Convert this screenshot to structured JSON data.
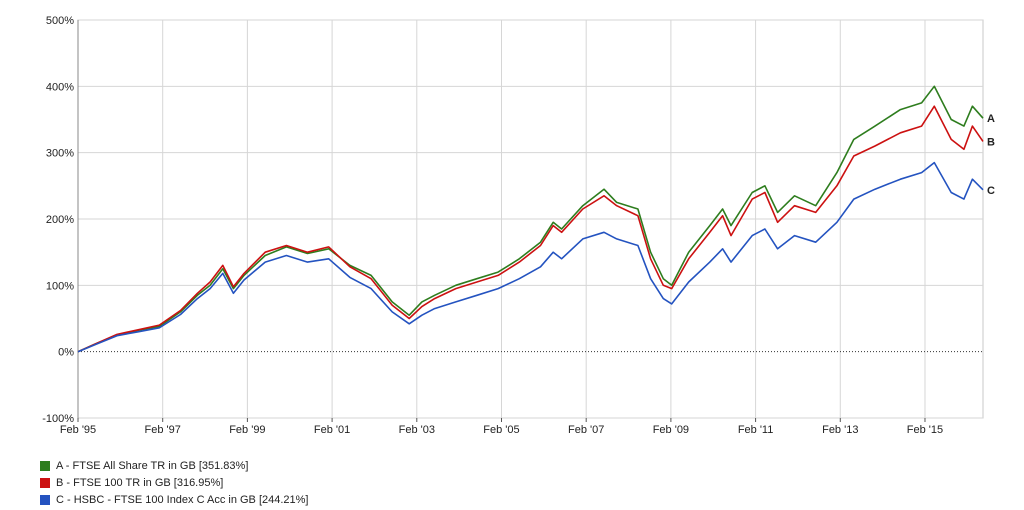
{
  "chart_data": {
    "type": "line",
    "title": "",
    "xlabel": "",
    "ylabel": "",
    "ylim": [
      -100,
      500
    ],
    "xlim": [
      1995.08,
      2016.45
    ],
    "y_ticks": [
      -100,
      0,
      100,
      200,
      300,
      400,
      500
    ],
    "y_tick_labels": [
      "-100%",
      "0%",
      "100%",
      "200%",
      "300%",
      "400%",
      "500%"
    ],
    "x_ticks": [
      1995.08,
      1997.08,
      1999.08,
      2001.08,
      2003.08,
      2005.08,
      2007.08,
      2009.08,
      2011.08,
      2013.08,
      2015.08
    ],
    "x_tick_labels": [
      "Feb '95",
      "Feb '97",
      "Feb '99",
      "Feb '01",
      "Feb '03",
      "Feb '05",
      "Feb '07",
      "Feb '09",
      "Feb '11",
      "Feb '13",
      "Feb '15"
    ],
    "grid": true,
    "legend_position": "bottom-left",
    "series": [
      {
        "name": "A - FTSE All Share TR in GB [351.83%]",
        "end_label": "A",
        "color": "#2e7d1e",
        "points": [
          [
            1995.08,
            0
          ],
          [
            1995.5,
            12
          ],
          [
            1996.0,
            25
          ],
          [
            1996.5,
            32
          ],
          [
            1997.0,
            38
          ],
          [
            1997.5,
            60
          ],
          [
            1997.9,
            85
          ],
          [
            1998.2,
            100
          ],
          [
            1998.5,
            125
          ],
          [
            1998.75,
            95
          ],
          [
            1999.0,
            115
          ],
          [
            1999.5,
            145
          ],
          [
            2000.0,
            158
          ],
          [
            2000.5,
            148
          ],
          [
            2001.0,
            155
          ],
          [
            2001.5,
            130
          ],
          [
            2002.0,
            115
          ],
          [
            2002.5,
            75
          ],
          [
            2002.9,
            55
          ],
          [
            2003.2,
            75
          ],
          [
            2003.5,
            85
          ],
          [
            2004.0,
            100
          ],
          [
            2004.5,
            110
          ],
          [
            2005.0,
            120
          ],
          [
            2005.5,
            140
          ],
          [
            2006.0,
            165
          ],
          [
            2006.3,
            195
          ],
          [
            2006.5,
            185
          ],
          [
            2007.0,
            220
          ],
          [
            2007.5,
            245
          ],
          [
            2007.8,
            225
          ],
          [
            2008.3,
            215
          ],
          [
            2008.6,
            150
          ],
          [
            2008.9,
            110
          ],
          [
            2009.1,
            100
          ],
          [
            2009.5,
            150
          ],
          [
            2010.0,
            190
          ],
          [
            2010.3,
            215
          ],
          [
            2010.5,
            190
          ],
          [
            2011.0,
            240
          ],
          [
            2011.3,
            250
          ],
          [
            2011.6,
            210
          ],
          [
            2012.0,
            235
          ],
          [
            2012.5,
            220
          ],
          [
            2013.0,
            270
          ],
          [
            2013.4,
            320
          ],
          [
            2013.9,
            340
          ],
          [
            2014.5,
            365
          ],
          [
            2015.0,
            375
          ],
          [
            2015.3,
            400
          ],
          [
            2015.7,
            350
          ],
          [
            2016.0,
            340
          ],
          [
            2016.2,
            370
          ],
          [
            2016.45,
            352
          ]
        ]
      },
      {
        "name": "B - FTSE 100 TR in GB [316.95%]",
        "end_label": "B",
        "color": "#cc1111",
        "points": [
          [
            1995.08,
            0
          ],
          [
            1995.5,
            12
          ],
          [
            1996.0,
            26
          ],
          [
            1996.5,
            33
          ],
          [
            1997.0,
            40
          ],
          [
            1997.5,
            62
          ],
          [
            1997.9,
            88
          ],
          [
            1998.2,
            105
          ],
          [
            1998.5,
            130
          ],
          [
            1998.75,
            98
          ],
          [
            1999.0,
            118
          ],
          [
            1999.5,
            150
          ],
          [
            2000.0,
            160
          ],
          [
            2000.5,
            150
          ],
          [
            2001.0,
            158
          ],
          [
            2001.5,
            128
          ],
          [
            2002.0,
            110
          ],
          [
            2002.5,
            70
          ],
          [
            2002.9,
            50
          ],
          [
            2003.2,
            68
          ],
          [
            2003.5,
            80
          ],
          [
            2004.0,
            95
          ],
          [
            2004.5,
            105
          ],
          [
            2005.0,
            115
          ],
          [
            2005.5,
            135
          ],
          [
            2006.0,
            160
          ],
          [
            2006.3,
            190
          ],
          [
            2006.5,
            180
          ],
          [
            2007.0,
            215
          ],
          [
            2007.5,
            235
          ],
          [
            2007.8,
            220
          ],
          [
            2008.3,
            205
          ],
          [
            2008.6,
            140
          ],
          [
            2008.9,
            100
          ],
          [
            2009.1,
            95
          ],
          [
            2009.5,
            140
          ],
          [
            2010.0,
            180
          ],
          [
            2010.3,
            205
          ],
          [
            2010.5,
            175
          ],
          [
            2011.0,
            230
          ],
          [
            2011.3,
            240
          ],
          [
            2011.6,
            195
          ],
          [
            2012.0,
            220
          ],
          [
            2012.5,
            210
          ],
          [
            2013.0,
            250
          ],
          [
            2013.4,
            295
          ],
          [
            2013.9,
            310
          ],
          [
            2014.5,
            330
          ],
          [
            2015.0,
            340
          ],
          [
            2015.3,
            370
          ],
          [
            2015.7,
            320
          ],
          [
            2016.0,
            305
          ],
          [
            2016.2,
            340
          ],
          [
            2016.45,
            317
          ]
        ]
      },
      {
        "name": "C - HSBC - FTSE 100 Index C Acc in GB [244.21%]",
        "end_label": "C",
        "color": "#2453c0",
        "points": [
          [
            1995.08,
            0
          ],
          [
            1995.5,
            11
          ],
          [
            1996.0,
            24
          ],
          [
            1996.5,
            30
          ],
          [
            1997.0,
            36
          ],
          [
            1997.5,
            56
          ],
          [
            1997.9,
            80
          ],
          [
            1998.2,
            95
          ],
          [
            1998.5,
            118
          ],
          [
            1998.75,
            88
          ],
          [
            1999.0,
            108
          ],
          [
            1999.5,
            135
          ],
          [
            2000.0,
            145
          ],
          [
            2000.5,
            135
          ],
          [
            2001.0,
            140
          ],
          [
            2001.5,
            112
          ],
          [
            2002.0,
            95
          ],
          [
            2002.5,
            60
          ],
          [
            2002.9,
            42
          ],
          [
            2003.2,
            55
          ],
          [
            2003.5,
            65
          ],
          [
            2004.0,
            75
          ],
          [
            2004.5,
            85
          ],
          [
            2005.0,
            95
          ],
          [
            2005.5,
            110
          ],
          [
            2006.0,
            128
          ],
          [
            2006.3,
            150
          ],
          [
            2006.5,
            140
          ],
          [
            2007.0,
            170
          ],
          [
            2007.5,
            180
          ],
          [
            2007.8,
            170
          ],
          [
            2008.3,
            160
          ],
          [
            2008.6,
            110
          ],
          [
            2008.9,
            80
          ],
          [
            2009.1,
            72
          ],
          [
            2009.5,
            105
          ],
          [
            2010.0,
            135
          ],
          [
            2010.3,
            155
          ],
          [
            2010.5,
            135
          ],
          [
            2011.0,
            175
          ],
          [
            2011.3,
            185
          ],
          [
            2011.6,
            155
          ],
          [
            2012.0,
            175
          ],
          [
            2012.5,
            165
          ],
          [
            2013.0,
            195
          ],
          [
            2013.4,
            230
          ],
          [
            2013.9,
            245
          ],
          [
            2014.5,
            260
          ],
          [
            2015.0,
            270
          ],
          [
            2015.3,
            285
          ],
          [
            2015.7,
            240
          ],
          [
            2016.0,
            230
          ],
          [
            2016.2,
            260
          ],
          [
            2016.45,
            244
          ]
        ]
      }
    ]
  }
}
